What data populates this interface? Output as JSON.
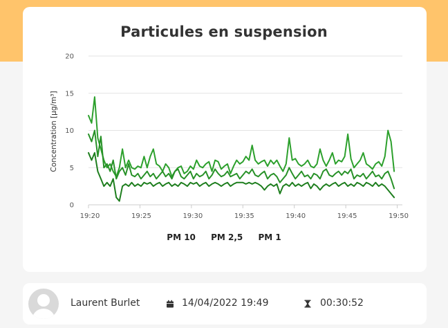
{
  "card": {
    "title": "Particules en suspension"
  },
  "chart_data": {
    "type": "line",
    "title": "Particules en suspension",
    "xlabel": "",
    "ylabel": "Concentration [µg/m³]",
    "ylim": [
      0,
      20
    ],
    "yticks": [
      "0",
      "5",
      "10",
      "15",
      "20"
    ],
    "xlim": [
      0,
      30.5
    ],
    "xticks": [
      {
        "t": 0,
        "label": "19:20"
      },
      {
        "t": 5,
        "label": "19:25"
      },
      {
        "t": 10,
        "label": "19:30"
      },
      {
        "t": 15,
        "label": "19:35"
      },
      {
        "t": 20,
        "label": "19:40"
      },
      {
        "t": 25,
        "label": "19:45"
      },
      {
        "t": 30,
        "label": "19:50"
      }
    ],
    "grid": true,
    "legend_position": "bottom",
    "series": [
      {
        "name": "PM 10",
        "color": "#2ca02c",
        "values": [
          [
            0,
            12
          ],
          [
            0.3,
            11
          ],
          [
            0.6,
            14.5
          ],
          [
            0.9,
            9
          ],
          [
            1.2,
            7.5
          ],
          [
            1.5,
            6
          ],
          [
            1.8,
            5
          ],
          [
            2.1,
            5.5
          ],
          [
            2.4,
            4.5
          ],
          [
            2.7,
            3.8
          ],
          [
            3,
            5
          ],
          [
            3.3,
            7.5
          ],
          [
            3.6,
            5
          ],
          [
            3.9,
            6
          ],
          [
            4.2,
            5
          ],
          [
            4.5,
            4.8
          ],
          [
            4.8,
            5.2
          ],
          [
            5.1,
            5
          ],
          [
            5.4,
            6.5
          ],
          [
            5.7,
            5
          ],
          [
            6,
            6.5
          ],
          [
            6.3,
            7.5
          ],
          [
            6.6,
            5.5
          ],
          [
            6.9,
            5.2
          ],
          [
            7.2,
            4.5
          ],
          [
            7.5,
            5.5
          ],
          [
            7.8,
            5
          ],
          [
            8.1,
            3.8
          ],
          [
            8.4,
            4.5
          ],
          [
            8.7,
            5
          ],
          [
            9,
            5.2
          ],
          [
            9.3,
            4.2
          ],
          [
            9.6,
            4.5
          ],
          [
            9.9,
            5.2
          ],
          [
            10.2,
            4.8
          ],
          [
            10.5,
            6
          ],
          [
            10.8,
            5.2
          ],
          [
            11.1,
            5
          ],
          [
            11.4,
            5.5
          ],
          [
            11.7,
            5.8
          ],
          [
            12,
            4.5
          ],
          [
            12.3,
            6
          ],
          [
            12.6,
            5.8
          ],
          [
            12.9,
            4.8
          ],
          [
            13.2,
            5.2
          ],
          [
            13.5,
            5.5
          ],
          [
            13.8,
            4.2
          ],
          [
            14.1,
            5.2
          ],
          [
            14.4,
            6
          ],
          [
            14.7,
            5.5
          ],
          [
            15,
            5.8
          ],
          [
            15.3,
            6.5
          ],
          [
            15.6,
            6
          ],
          [
            15.9,
            8
          ],
          [
            16.2,
            6
          ],
          [
            16.5,
            5.5
          ],
          [
            16.8,
            5.8
          ],
          [
            17.1,
            6
          ],
          [
            17.4,
            5.2
          ],
          [
            17.7,
            6
          ],
          [
            18,
            5.5
          ],
          [
            18.3,
            6
          ],
          [
            18.6,
            5.2
          ],
          [
            18.9,
            4.5
          ],
          [
            19.2,
            5.5
          ],
          [
            19.5,
            9
          ],
          [
            19.8,
            6
          ],
          [
            20.1,
            6.2
          ],
          [
            20.4,
            5.5
          ],
          [
            20.7,
            5.2
          ],
          [
            21,
            5.5
          ],
          [
            21.3,
            6
          ],
          [
            21.6,
            5.2
          ],
          [
            21.9,
            5
          ],
          [
            22.2,
            5.5
          ],
          [
            22.5,
            7.5
          ],
          [
            22.8,
            6
          ],
          [
            23.1,
            5.2
          ],
          [
            23.4,
            6
          ],
          [
            23.7,
            7
          ],
          [
            24,
            5.5
          ],
          [
            24.3,
            6
          ],
          [
            24.6,
            5.8
          ],
          [
            24.9,
            6.5
          ],
          [
            25.2,
            9.5
          ],
          [
            25.5,
            6.2
          ],
          [
            25.8,
            5
          ],
          [
            26.1,
            5.5
          ],
          [
            26.4,
            6
          ],
          [
            26.7,
            7
          ],
          [
            27,
            5.5
          ],
          [
            27.3,
            5.2
          ],
          [
            27.6,
            4.8
          ],
          [
            27.9,
            5.5
          ],
          [
            28.2,
            5.8
          ],
          [
            28.5,
            5.2
          ],
          [
            28.8,
            6.5
          ],
          [
            29.1,
            10
          ],
          [
            29.4,
            8.5
          ],
          [
            29.7,
            4.5
          ]
        ]
      },
      {
        "name": "PM 2,5",
        "color": "#279127",
        "values": [
          [
            0,
            9.5
          ],
          [
            0.3,
            8.5
          ],
          [
            0.6,
            10
          ],
          [
            0.9,
            6.5
          ],
          [
            1.2,
            9.2
          ],
          [
            1.5,
            5
          ],
          [
            1.8,
            5.5
          ],
          [
            2.1,
            4.5
          ],
          [
            2.4,
            6
          ],
          [
            2.7,
            3.5
          ],
          [
            3,
            4.5
          ],
          [
            3.3,
            5
          ],
          [
            3.6,
            4
          ],
          [
            3.9,
            5.5
          ],
          [
            4.2,
            4
          ],
          [
            4.5,
            3.8
          ],
          [
            4.8,
            4.2
          ],
          [
            5.1,
            3.5
          ],
          [
            5.4,
            4
          ],
          [
            5.7,
            4.5
          ],
          [
            6,
            3.8
          ],
          [
            6.3,
            4.2
          ],
          [
            6.6,
            3.5
          ],
          [
            6.9,
            4
          ],
          [
            7.2,
            4.5
          ],
          [
            7.5,
            3.8
          ],
          [
            7.8,
            4.2
          ],
          [
            8.1,
            3.5
          ],
          [
            8.4,
            4.5
          ],
          [
            8.7,
            4.8
          ],
          [
            9,
            3.8
          ],
          [
            9.3,
            3.5
          ],
          [
            9.6,
            4
          ],
          [
            9.9,
            4.5
          ],
          [
            10.2,
            3.5
          ],
          [
            10.5,
            4.2
          ],
          [
            10.8,
            3.8
          ],
          [
            11.1,
            4
          ],
          [
            11.4,
            4.5
          ],
          [
            11.7,
            3.5
          ],
          [
            12,
            4
          ],
          [
            12.3,
            4.8
          ],
          [
            12.6,
            4.2
          ],
          [
            12.9,
            3.8
          ],
          [
            13.2,
            4
          ],
          [
            13.5,
            4.5
          ],
          [
            13.8,
            3.8
          ],
          [
            14.1,
            4
          ],
          [
            14.4,
            4.2
          ],
          [
            14.7,
            3.5
          ],
          [
            15,
            4
          ],
          [
            15.3,
            4.5
          ],
          [
            15.6,
            4.2
          ],
          [
            15.9,
            4.8
          ],
          [
            16.2,
            4
          ],
          [
            16.5,
            3.8
          ],
          [
            16.8,
            4.2
          ],
          [
            17.1,
            4.5
          ],
          [
            17.4,
            3.5
          ],
          [
            17.7,
            4
          ],
          [
            18,
            4.2
          ],
          [
            18.3,
            3.8
          ],
          [
            18.6,
            3
          ],
          [
            18.9,
            3.5
          ],
          [
            19.2,
            4
          ],
          [
            19.5,
            5
          ],
          [
            19.8,
            4.2
          ],
          [
            20.1,
            3.5
          ],
          [
            20.4,
            4
          ],
          [
            20.7,
            4.5
          ],
          [
            21,
            3.8
          ],
          [
            21.3,
            4
          ],
          [
            21.6,
            3.5
          ],
          [
            21.9,
            4.2
          ],
          [
            22.2,
            4
          ],
          [
            22.5,
            3.5
          ],
          [
            22.8,
            4.5
          ],
          [
            23.1,
            4.8
          ],
          [
            23.4,
            4
          ],
          [
            23.7,
            3.8
          ],
          [
            24,
            4.2
          ],
          [
            24.3,
            4.5
          ],
          [
            24.6,
            4
          ],
          [
            24.9,
            4.5
          ],
          [
            25.2,
            4.2
          ],
          [
            25.5,
            4.8
          ],
          [
            25.8,
            3.5
          ],
          [
            26.1,
            4
          ],
          [
            26.4,
            3.8
          ],
          [
            26.7,
            4.2
          ],
          [
            27,
            3.5
          ],
          [
            27.3,
            4
          ],
          [
            27.6,
            4.5
          ],
          [
            27.9,
            3.8
          ],
          [
            28.2,
            4
          ],
          [
            28.5,
            3.5
          ],
          [
            28.8,
            4.2
          ],
          [
            29.1,
            4.5
          ],
          [
            29.4,
            3.5
          ],
          [
            29.7,
            2.2
          ]
        ]
      },
      {
        "name": "PM 1",
        "color": "#1e7e1e",
        "values": [
          [
            0,
            7
          ],
          [
            0.3,
            6
          ],
          [
            0.6,
            7
          ],
          [
            0.9,
            4.5
          ],
          [
            1.2,
            3.5
          ],
          [
            1.5,
            2.5
          ],
          [
            1.8,
            3
          ],
          [
            2.1,
            2.5
          ],
          [
            2.4,
            3.5
          ],
          [
            2.7,
            1
          ],
          [
            3,
            0.5
          ],
          [
            3.3,
            2.5
          ],
          [
            3.6,
            2.8
          ],
          [
            3.9,
            2.5
          ],
          [
            4.2,
            3
          ],
          [
            4.5,
            2.5
          ],
          [
            4.8,
            2.8
          ],
          [
            5.1,
            2.5
          ],
          [
            5.4,
            3
          ],
          [
            5.7,
            2.8
          ],
          [
            6,
            3
          ],
          [
            6.3,
            2.5
          ],
          [
            6.6,
            2.8
          ],
          [
            6.9,
            3
          ],
          [
            7.2,
            2.5
          ],
          [
            7.5,
            2.8
          ],
          [
            7.8,
            3
          ],
          [
            8.1,
            2.5
          ],
          [
            8.4,
            2.8
          ],
          [
            8.7,
            2.5
          ],
          [
            9,
            3
          ],
          [
            9.3,
            2.8
          ],
          [
            9.6,
            2.5
          ],
          [
            9.9,
            3
          ],
          [
            10.2,
            2.8
          ],
          [
            10.5,
            3
          ],
          [
            10.8,
            2.5
          ],
          [
            11.1,
            2.8
          ],
          [
            11.4,
            3
          ],
          [
            11.7,
            2.5
          ],
          [
            12,
            2.8
          ],
          [
            12.3,
            3
          ],
          [
            12.6,
            2.8
          ],
          [
            12.9,
            2.5
          ],
          [
            13.2,
            2.8
          ],
          [
            13.5,
            3
          ],
          [
            13.8,
            2.5
          ],
          [
            14.1,
            2.8
          ],
          [
            14.4,
            3
          ],
          [
            14.7,
            3
          ],
          [
            15,
            3
          ],
          [
            15.3,
            2.8
          ],
          [
            15.6,
            3
          ],
          [
            15.9,
            2.8
          ],
          [
            16.2,
            3
          ],
          [
            16.5,
            2.8
          ],
          [
            16.8,
            2.5
          ],
          [
            17.1,
            2
          ],
          [
            17.4,
            2.5
          ],
          [
            17.7,
            2.8
          ],
          [
            18,
            2.5
          ],
          [
            18.3,
            2.8
          ],
          [
            18.6,
            1.5
          ],
          [
            18.9,
            2.5
          ],
          [
            19.2,
            2.8
          ],
          [
            19.5,
            2.5
          ],
          [
            19.8,
            3
          ],
          [
            20.1,
            2.5
          ],
          [
            20.4,
            2.8
          ],
          [
            20.7,
            2.5
          ],
          [
            21,
            2.8
          ],
          [
            21.3,
            3
          ],
          [
            21.6,
            2.2
          ],
          [
            21.9,
            2.8
          ],
          [
            22.2,
            2.5
          ],
          [
            22.5,
            2
          ],
          [
            22.8,
            2.5
          ],
          [
            23.1,
            2.8
          ],
          [
            23.4,
            2.5
          ],
          [
            23.7,
            2.8
          ],
          [
            24,
            3
          ],
          [
            24.3,
            2.5
          ],
          [
            24.6,
            2.8
          ],
          [
            24.9,
            3
          ],
          [
            25.2,
            2.5
          ],
          [
            25.5,
            2.8
          ],
          [
            25.8,
            2.5
          ],
          [
            26.1,
            3
          ],
          [
            26.4,
            2.8
          ],
          [
            26.7,
            2.5
          ],
          [
            27,
            3
          ],
          [
            27.3,
            2.8
          ],
          [
            27.6,
            2.5
          ],
          [
            27.9,
            3
          ],
          [
            28.2,
            2.5
          ],
          [
            28.5,
            2.8
          ],
          [
            28.8,
            2.5
          ],
          [
            29.1,
            2
          ],
          [
            29.4,
            1.5
          ],
          [
            29.7,
            1
          ]
        ]
      }
    ]
  },
  "legend": [
    "PM 10",
    "PM 2,5",
    "PM 1"
  ],
  "footer": {
    "user_name": "Laurent Burlet",
    "date_time": "14/04/2022 19:49",
    "duration": "00:30:52",
    "calendar_icon": "calendar-icon",
    "duration_icon": "hourglass-icon",
    "avatar_icon": "user-avatar-icon"
  },
  "colors": {
    "accent_band": "#ffc46b",
    "card_bg": "#ffffff",
    "page_bg": "#f5f5f5"
  }
}
